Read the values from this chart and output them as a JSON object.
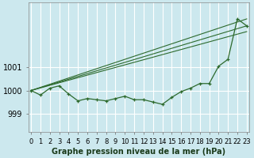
{
  "title": "Graphe pression niveau de la mer (hPa)",
  "background_color": "#cce8ee",
  "grid_color": "#ffffff",
  "line_color": "#2d6a2d",
  "x_labels": [
    "0",
    "1",
    "2",
    "3",
    "4",
    "5",
    "6",
    "7",
    "8",
    "9",
    "10",
    "11",
    "12",
    "13",
    "14",
    "15",
    "16",
    "17",
    "18",
    "19",
    "20",
    "21",
    "22",
    "23"
  ],
  "y_ticks": [
    999,
    1000,
    1001
  ],
  "ylim": [
    998.2,
    1003.8
  ],
  "xlim": [
    -0.3,
    23.3
  ],
  "hourly_data": [
    1000.0,
    999.8,
    1000.1,
    1000.2,
    999.85,
    999.55,
    999.65,
    999.6,
    999.55,
    999.65,
    999.75,
    999.6,
    999.6,
    999.5,
    999.4,
    999.7,
    999.95,
    1000.1,
    1000.3,
    1000.3,
    1001.05,
    1001.35,
    1003.1,
    1002.8
  ],
  "trend_lines": [
    {
      "x": [
        0,
        23
      ],
      "y": [
        1000.0,
        1002.8
      ]
    },
    {
      "x": [
        0,
        23
      ],
      "y": [
        1000.0,
        1003.1
      ]
    },
    {
      "x": [
        0,
        23
      ],
      "y": [
        1000.0,
        1002.55
      ]
    }
  ],
  "tick_fontsize": 6,
  "xlabel_fontsize": 7,
  "lw_main": 0.9,
  "lw_trend": 0.8
}
